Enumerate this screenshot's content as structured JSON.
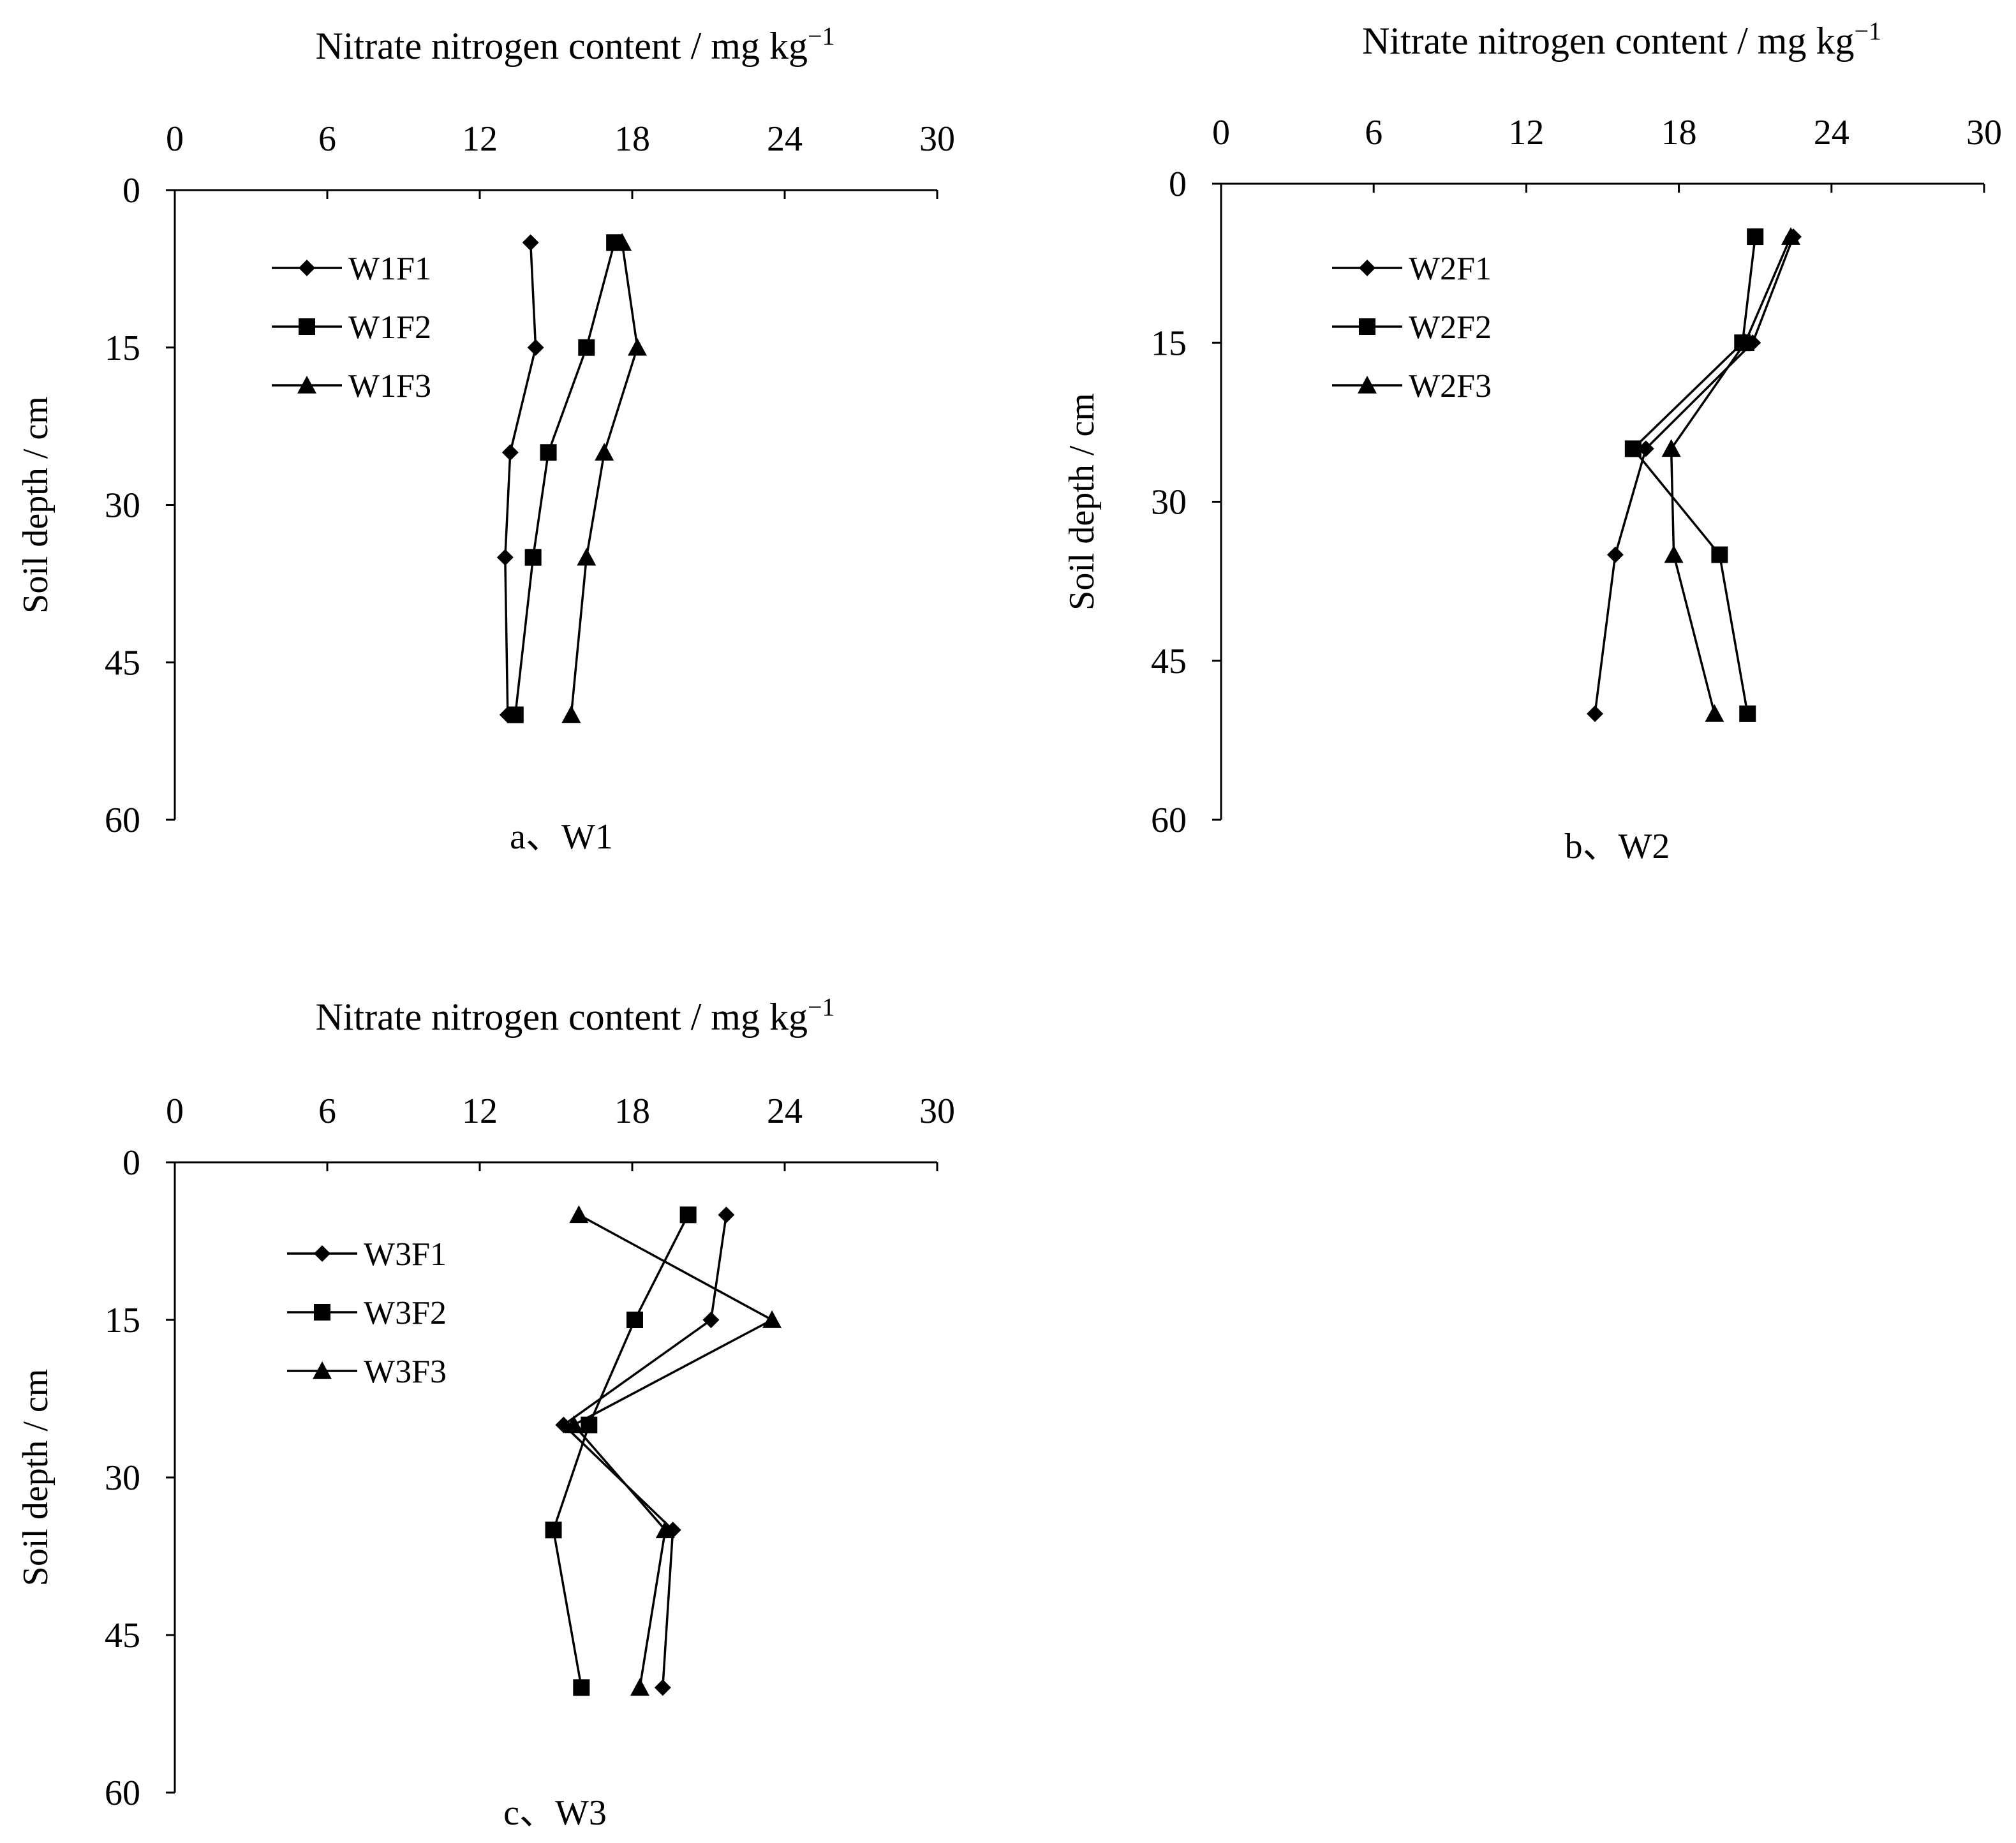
{
  "chart_data": [
    {
      "type": "line",
      "panel": "a",
      "title": "Nitrate nitrogen content / mg kg",
      "title_superscript": "−1",
      "xlabel": "Nitrate nitrogen content / mg kg−1",
      "ylabel": "Soil depth / cm",
      "caption": "a、W1",
      "x_ticks": [
        "0",
        "6",
        "12",
        "18",
        "24",
        "30"
      ],
      "y_ticks": [
        "0",
        "15",
        "30",
        "45",
        "60"
      ],
      "xlim": [
        0,
        30
      ],
      "ylim": [
        0,
        60
      ],
      "x_axis_position": "top",
      "y_axis_inverted": true,
      "legend_position": "top-left",
      "depth": [
        5,
        15,
        25,
        35,
        50
      ],
      "series": [
        {
          "name": "W1F1",
          "marker": "diamond",
          "values": [
            14.0,
            14.2,
            13.2,
            13.0,
            13.1
          ]
        },
        {
          "name": "W1F2",
          "marker": "square",
          "values": [
            17.3,
            16.2,
            14.7,
            14.1,
            13.4
          ]
        },
        {
          "name": "W1F3",
          "marker": "triangle",
          "values": [
            17.6,
            18.2,
            16.9,
            16.2,
            15.6
          ]
        }
      ]
    },
    {
      "type": "line",
      "panel": "b",
      "title": "Nitrate nitrogen content / mg kg",
      "title_superscript": "−1",
      "xlabel": "Nitrate nitrogen content / mg kg−1",
      "ylabel": "Soil depth / cm",
      "caption": "b、W2",
      "x_ticks": [
        "0",
        "6",
        "12",
        "18",
        "24",
        "30"
      ],
      "y_ticks": [
        "0",
        "15",
        "30",
        "45",
        "60"
      ],
      "xlim": [
        0,
        30
      ],
      "ylim": [
        0,
        60
      ],
      "x_axis_position": "top",
      "y_axis_inverted": true,
      "legend_position": "top-left",
      "depth": [
        5,
        15,
        25,
        35,
        50
      ],
      "series": [
        {
          "name": "W2F1",
          "marker": "diamond",
          "values": [
            22.5,
            20.9,
            16.7,
            15.5,
            14.7
          ]
        },
        {
          "name": "W2F2",
          "marker": "square",
          "values": [
            21.0,
            20.5,
            16.2,
            19.6,
            20.7
          ]
        },
        {
          "name": "W2F3",
          "marker": "triangle",
          "values": [
            22.4,
            20.6,
            17.7,
            17.8,
            19.4
          ]
        }
      ]
    },
    {
      "type": "line",
      "panel": "c",
      "title": "Nitrate nitrogen content / mg kg",
      "title_superscript": "−1",
      "xlabel": "Nitrate nitrogen content / mg kg−1",
      "ylabel": "Soil depth / cm",
      "caption": "c、W3",
      "x_ticks": [
        "0",
        "6",
        "12",
        "18",
        "24",
        "30"
      ],
      "y_ticks": [
        "0",
        "15",
        "30",
        "45",
        "60"
      ],
      "xlim": [
        0,
        30
      ],
      "ylim": [
        0,
        60
      ],
      "x_axis_position": "top",
      "y_axis_inverted": true,
      "legend_position": "top-left",
      "depth": [
        5,
        15,
        25,
        35,
        50
      ],
      "series": [
        {
          "name": "W3F1",
          "marker": "diamond",
          "values": [
            21.7,
            21.1,
            15.3,
            19.6,
            19.2
          ]
        },
        {
          "name": "W3F2",
          "marker": "square",
          "values": [
            20.2,
            18.1,
            16.3,
            14.9,
            16.0
          ]
        },
        {
          "name": "W3F3",
          "marker": "triangle",
          "values": [
            15.9,
            23.5,
            15.7,
            19.3,
            18.3
          ]
        }
      ]
    }
  ]
}
